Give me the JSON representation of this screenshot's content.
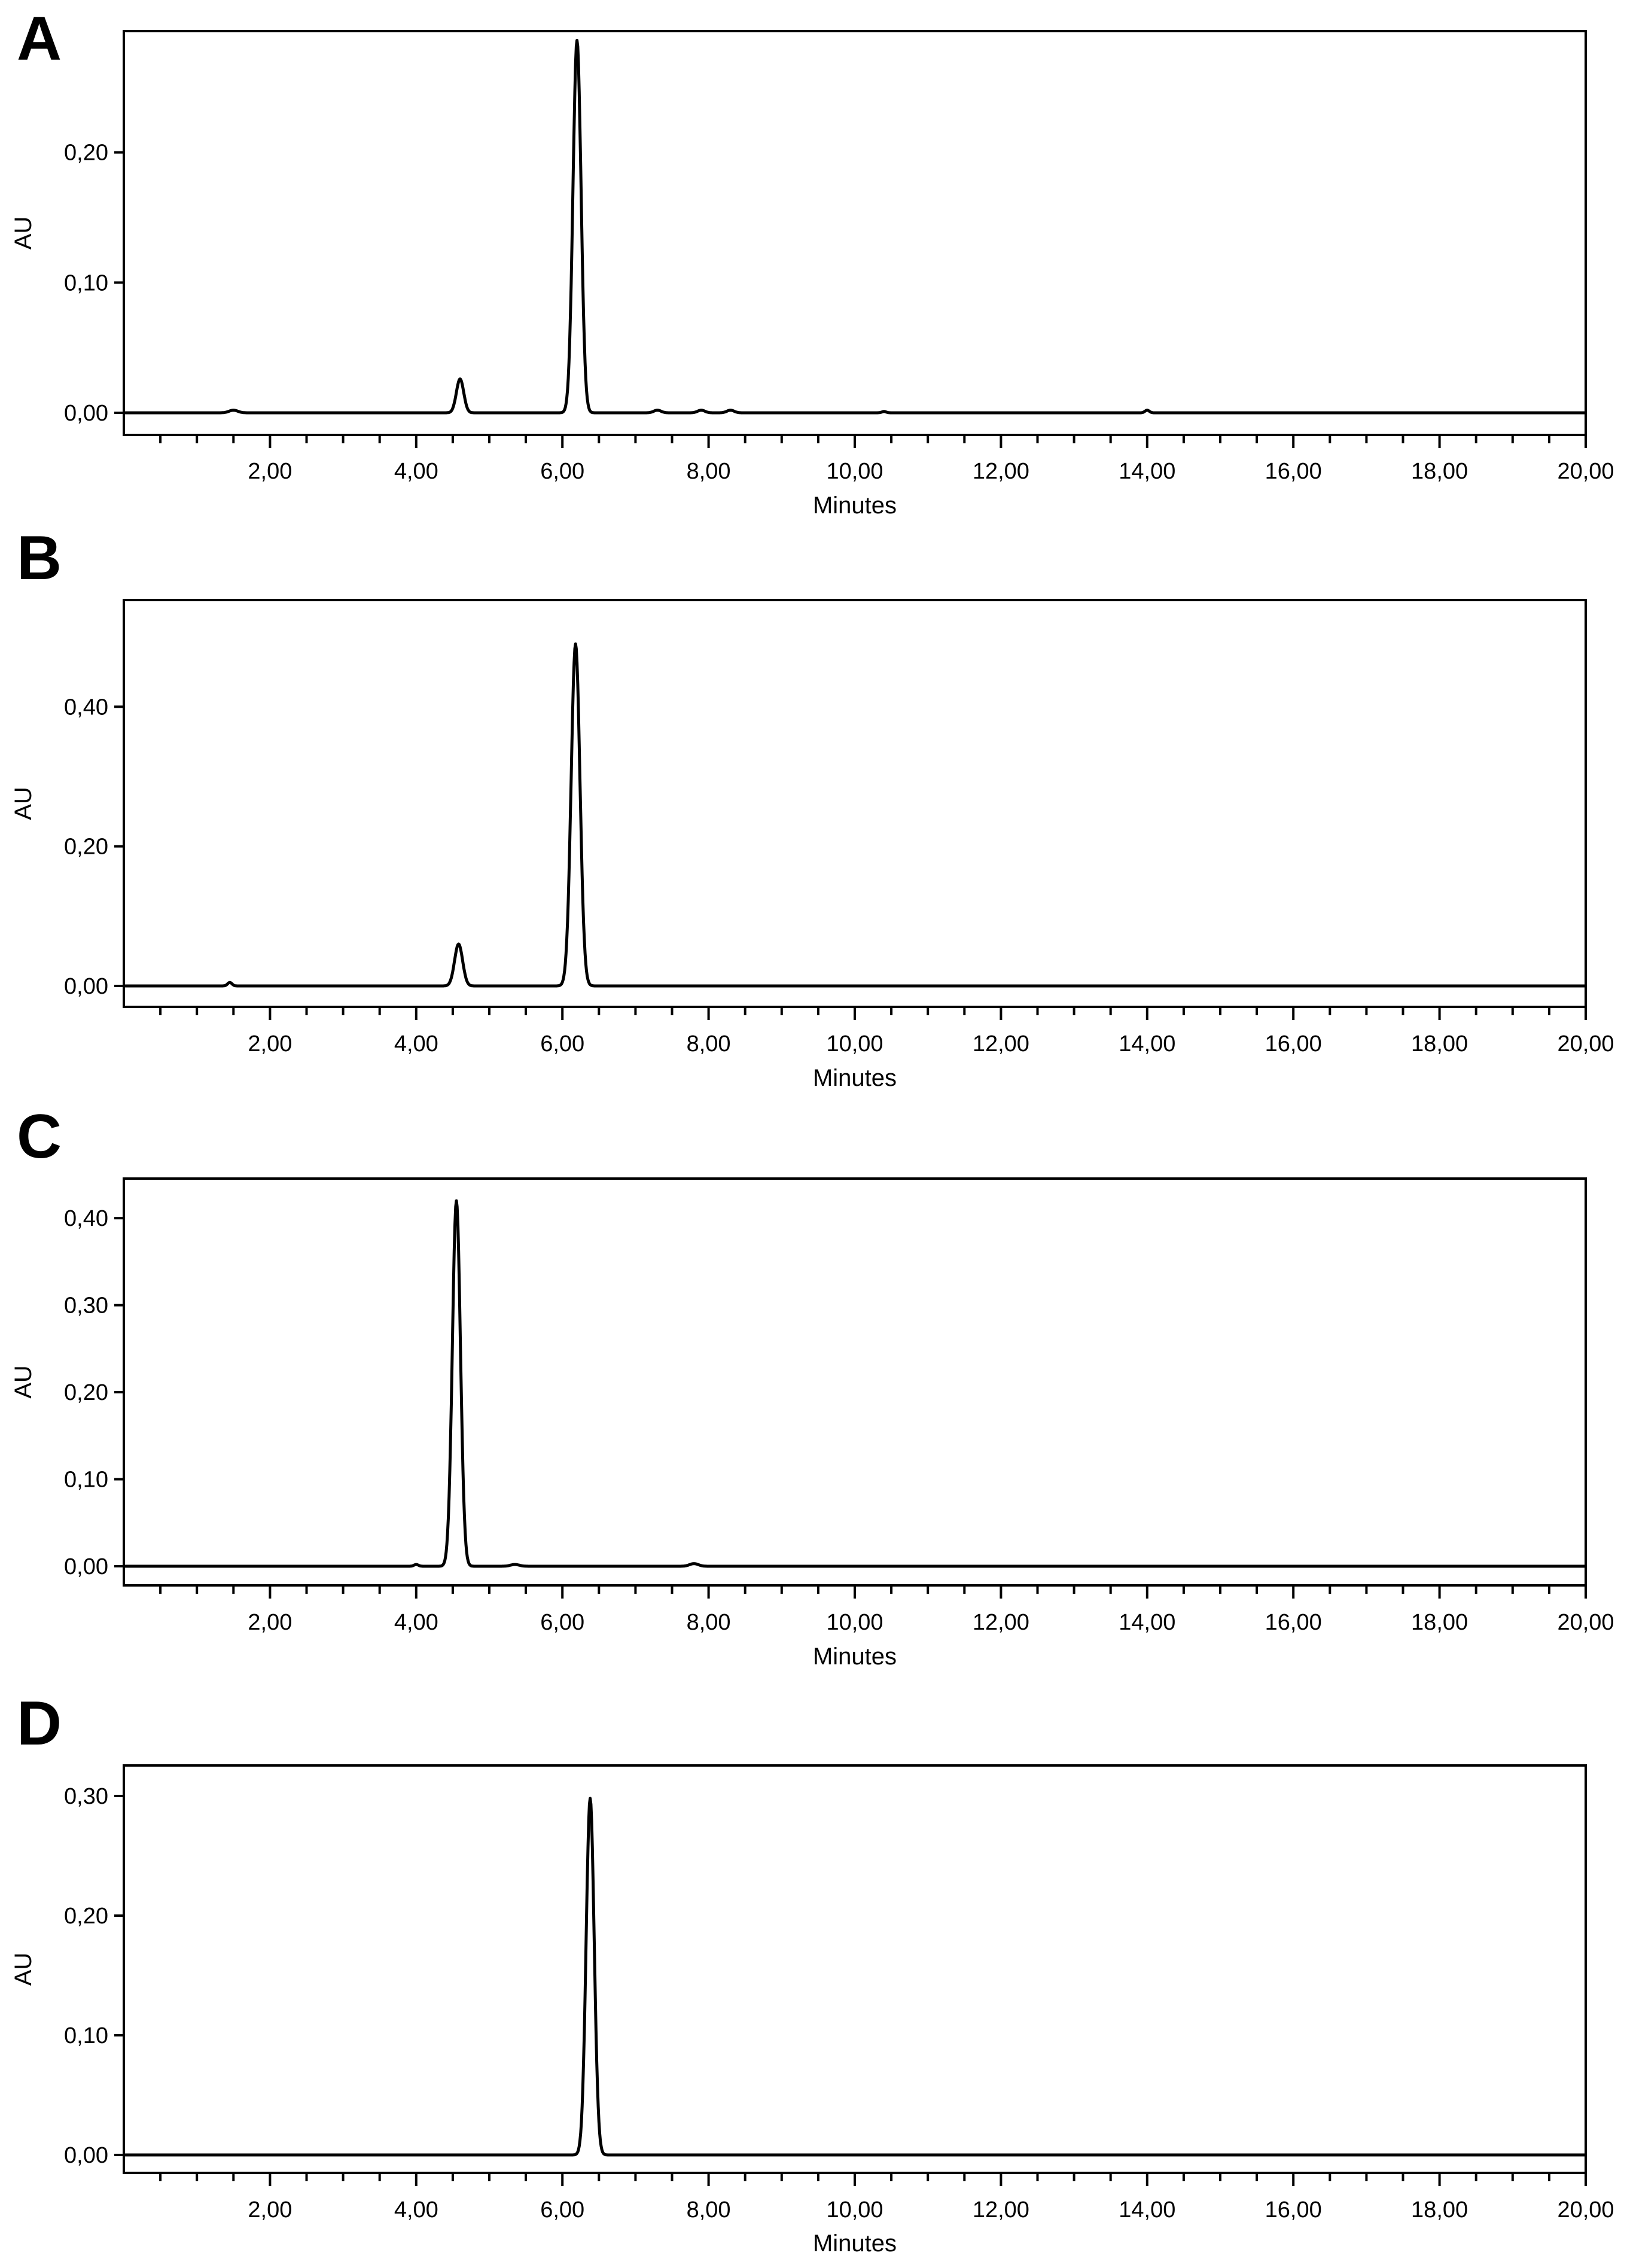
{
  "chart_data": [
    {
      "panel": "A",
      "type": "line",
      "xlabel": "Minutes",
      "ylabel": "AU",
      "xlim": [
        0,
        20
      ],
      "ylim": [
        -0.017,
        0.305
      ],
      "xticks": [
        2,
        4,
        6,
        8,
        10,
        12,
        14,
        16,
        18,
        20
      ],
      "xtick_labels": [
        "2,00",
        "4,00",
        "6,00",
        "8,00",
        "10,00",
        "12,00",
        "14,00",
        "16,00",
        "18,00",
        "20,00"
      ],
      "yticks": [
        0,
        0.1,
        0.2
      ],
      "ytick_labels": [
        "0,00",
        "0,10",
        "0,20"
      ],
      "grid": false,
      "series": [
        {
          "peaks": [
            {
              "x": 1.5,
              "height": 0.002,
              "width": 0.06
            },
            {
              "x": 4.6,
              "height": 0.026,
              "width": 0.05
            },
            {
              "x": 6.2,
              "height": 0.286,
              "width": 0.055
            },
            {
              "x": 7.3,
              "height": 0.002,
              "width": 0.05
            },
            {
              "x": 7.9,
              "height": 0.002,
              "width": 0.05
            },
            {
              "x": 8.3,
              "height": 0.002,
              "width": 0.05
            },
            {
              "x": 10.4,
              "height": 0.001,
              "width": 0.03
            },
            {
              "x": 14.0,
              "height": 0.002,
              "width": 0.03
            }
          ]
        }
      ]
    },
    {
      "panel": "B",
      "type": "line",
      "xlabel": "Minutes",
      "ylabel": "AU",
      "xlim": [
        0,
        20
      ],
      "ylim": [
        -0.03,
        0.51
      ],
      "xticks": [
        2,
        4,
        6,
        8,
        10,
        12,
        14,
        16,
        18,
        20
      ],
      "xtick_labels": [
        "2,00",
        "4,00",
        "6,00",
        "8,00",
        "10,00",
        "12,00",
        "14,00",
        "16,00",
        "18,00",
        "20,00"
      ],
      "yticks": [
        0,
        0.2,
        0.4
      ],
      "ytick_labels": [
        "0,00",
        "0,20",
        "0,40"
      ],
      "grid": false,
      "series": [
        {
          "peaks": [
            {
              "x": 1.45,
              "height": 0.005,
              "width": 0.03
            },
            {
              "x": 4.58,
              "height": 0.06,
              "width": 0.055
            },
            {
              "x": 6.18,
              "height": 0.49,
              "width": 0.06
            }
          ]
        }
      ]
    },
    {
      "panel": "C",
      "type": "line",
      "xlabel": "Minutes",
      "ylabel": "AU",
      "xlim": [
        0,
        20
      ],
      "ylim": [
        -0.022,
        0.44
      ],
      "xticks": [
        2,
        4,
        6,
        8,
        10,
        12,
        14,
        16,
        18,
        20
      ],
      "xtick_labels": [
        "2,00",
        "4,00",
        "6,00",
        "8,00",
        "10,00",
        "12,00",
        "14,00",
        "16,00",
        "18,00",
        "20,00"
      ],
      "yticks": [
        0,
        0.1,
        0.2,
        0.3,
        0.4
      ],
      "ytick_labels": [
        "0,00",
        "0,10",
        "0,20",
        "0,30",
        "0,40"
      ],
      "grid": false,
      "series": [
        {
          "peaks": [
            {
              "x": 4.0,
              "height": 0.002,
              "width": 0.03
            },
            {
              "x": 4.55,
              "height": 0.42,
              "width": 0.055
            },
            {
              "x": 5.35,
              "height": 0.002,
              "width": 0.06
            },
            {
              "x": 7.8,
              "height": 0.003,
              "width": 0.06
            }
          ]
        }
      ]
    },
    {
      "panel": "D",
      "type": "line",
      "xlabel": "Minutes",
      "ylabel": "AU",
      "xlim": [
        0,
        20
      ],
      "ylim": [
        -0.015,
        0.31
      ],
      "xticks": [
        2,
        4,
        6,
        8,
        10,
        12,
        14,
        16,
        18,
        20
      ],
      "xtick_labels": [
        "2,00",
        "4,00",
        "6,00",
        "8,00",
        "10,00",
        "12,00",
        "14,00",
        "16,00",
        "18,00",
        "20,00"
      ],
      "yticks": [
        0,
        0.1,
        0.2,
        0.3
      ],
      "ytick_labels": [
        "0,00",
        "0,10",
        "0,20",
        "0,30"
      ],
      "grid": false,
      "series": [
        {
          "peaks": [
            {
              "x": 6.38,
              "height": 0.298,
              "width": 0.055
            }
          ]
        }
      ]
    }
  ]
}
